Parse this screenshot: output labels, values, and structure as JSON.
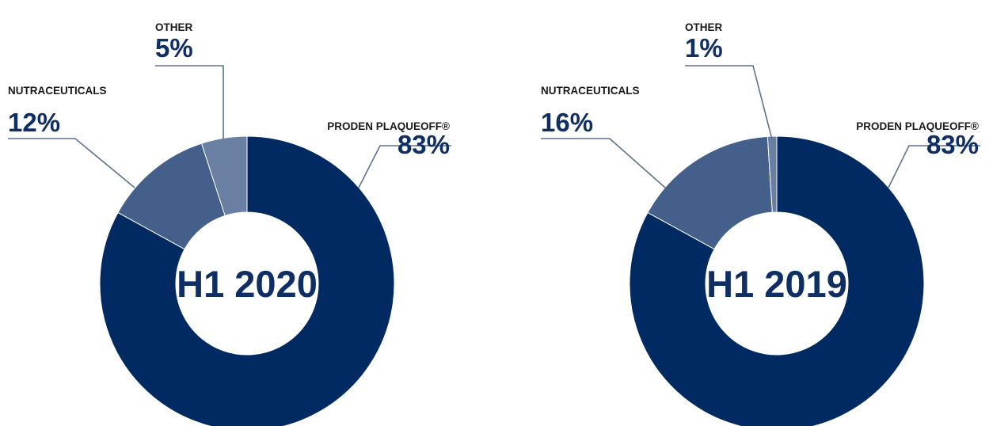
{
  "colors": {
    "text_dark": "#1a1a1a",
    "value_blue": "#0f2e63",
    "center_text": "#0f2e63",
    "leader_line": "#5d7191"
  },
  "chart_data": [
    {
      "type": "pie",
      "title": "H1 2020",
      "slices": [
        {
          "label": "PRODEN PLAQUEOFF®",
          "value": 83,
          "display": "83%",
          "color": "#002a61"
        },
        {
          "label": "NUTRACEUTICALS",
          "value": 12,
          "display": "12%",
          "color": "#445f8a"
        },
        {
          "label": "OTHER",
          "value": 5,
          "display": "5%",
          "color": "#6a80a3"
        }
      ]
    },
    {
      "type": "pie",
      "title": "H1 2019",
      "slices": [
        {
          "label": "PRODEN PLAQUEOFF®",
          "value": 83,
          "display": "83%",
          "color": "#002a61"
        },
        {
          "label": "NUTRACEUTICALS",
          "value": 16,
          "display": "16%",
          "color": "#445f8a"
        },
        {
          "label": "OTHER",
          "value": 1,
          "display": "1%",
          "color": "#6a80a3"
        }
      ]
    }
  ]
}
